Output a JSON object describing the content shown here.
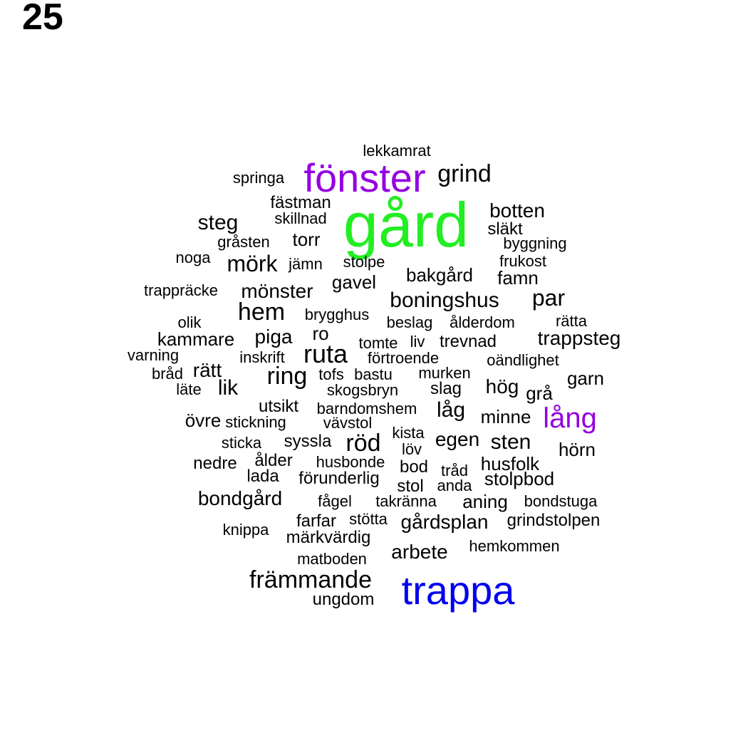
{
  "page_number": "25",
  "colors": {
    "default": "#000000",
    "green": "#22ee22",
    "purple": "#9400e0",
    "blue": "#0000ee"
  },
  "words": [
    {
      "text": "lekkamrat"
    },
    {
      "text": "springa"
    },
    {
      "text": "fönster",
      "color": "purple"
    },
    {
      "text": "grind"
    },
    {
      "text": "fästman"
    },
    {
      "text": "gård",
      "color": "green"
    },
    {
      "text": "botten"
    },
    {
      "text": "steg"
    },
    {
      "text": "skillnad"
    },
    {
      "text": "släkt"
    },
    {
      "text": "gråsten"
    },
    {
      "text": "torr"
    },
    {
      "text": "byggning"
    },
    {
      "text": "noga"
    },
    {
      "text": "mörk"
    },
    {
      "text": "jämn"
    },
    {
      "text": "stolpe"
    },
    {
      "text": "frukost"
    },
    {
      "text": "bakgård"
    },
    {
      "text": "famn"
    },
    {
      "text": "gavel"
    },
    {
      "text": "trappräcke"
    },
    {
      "text": "mönster"
    },
    {
      "text": "boningshus"
    },
    {
      "text": "par"
    },
    {
      "text": "hem"
    },
    {
      "text": "brygghus"
    },
    {
      "text": "olik"
    },
    {
      "text": "beslag"
    },
    {
      "text": "ålderdom"
    },
    {
      "text": "rätta"
    },
    {
      "text": "ro"
    },
    {
      "text": "kammare"
    },
    {
      "text": "piga"
    },
    {
      "text": "tomte"
    },
    {
      "text": "liv"
    },
    {
      "text": "trevnad"
    },
    {
      "text": "trappsteg"
    },
    {
      "text": "varning"
    },
    {
      "text": "ruta"
    },
    {
      "text": "inskrift"
    },
    {
      "text": "förtroende"
    },
    {
      "text": "oändlighet"
    },
    {
      "text": "bråd"
    },
    {
      "text": "rätt"
    },
    {
      "text": "ring"
    },
    {
      "text": "tofs"
    },
    {
      "text": "bastu"
    },
    {
      "text": "murken"
    },
    {
      "text": "garn"
    },
    {
      "text": "läte"
    },
    {
      "text": "lik"
    },
    {
      "text": "skogsbryn"
    },
    {
      "text": "slag"
    },
    {
      "text": "hög"
    },
    {
      "text": "grå"
    },
    {
      "text": "utsikt"
    },
    {
      "text": "barndomshem"
    },
    {
      "text": "låg"
    },
    {
      "text": "övre"
    },
    {
      "text": "stickning"
    },
    {
      "text": "vävstol"
    },
    {
      "text": "minne"
    },
    {
      "text": "lång",
      "color": "purple"
    },
    {
      "text": "kista"
    },
    {
      "text": "sticka"
    },
    {
      "text": "syssla"
    },
    {
      "text": "röd"
    },
    {
      "text": "egen"
    },
    {
      "text": "sten"
    },
    {
      "text": "löv"
    },
    {
      "text": "hörn"
    },
    {
      "text": "nedre"
    },
    {
      "text": "ålder"
    },
    {
      "text": "husbonde"
    },
    {
      "text": "bod"
    },
    {
      "text": "tråd"
    },
    {
      "text": "husfolk"
    },
    {
      "text": "lada"
    },
    {
      "text": "förunderlig"
    },
    {
      "text": "anda"
    },
    {
      "text": "stolpbod"
    },
    {
      "text": "stol"
    },
    {
      "text": "bondgård"
    },
    {
      "text": "fågel"
    },
    {
      "text": "takränna"
    },
    {
      "text": "aning"
    },
    {
      "text": "bondstuga"
    },
    {
      "text": "farfar"
    },
    {
      "text": "stötta"
    },
    {
      "text": "gårdsplan"
    },
    {
      "text": "grindstolpen"
    },
    {
      "text": "knippa"
    },
    {
      "text": "märkvärdig"
    },
    {
      "text": "hemkommen"
    },
    {
      "text": "arbete"
    },
    {
      "text": "matboden"
    },
    {
      "text": "främmande"
    },
    {
      "text": "trappa",
      "color": "blue"
    },
    {
      "text": "ungdom"
    }
  ]
}
